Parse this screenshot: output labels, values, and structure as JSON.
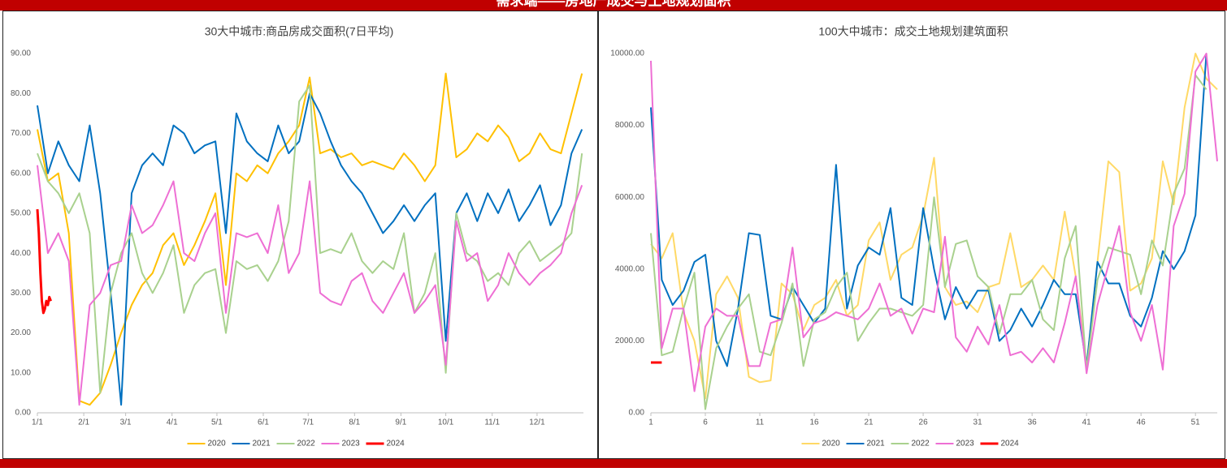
{
  "header": {
    "title": "需求端——房地产成交与土地规划面积"
  },
  "chart_data": [
    {
      "type": "line",
      "title": "30大中城市:商品房成交面积(7日平均)",
      "x": [
        0,
        7,
        14,
        21,
        28,
        35,
        42,
        49,
        56,
        63,
        70,
        77,
        84,
        91,
        98,
        105,
        112,
        119,
        126,
        133,
        140,
        147,
        154,
        161,
        168,
        175,
        182,
        189,
        196,
        203,
        210,
        217,
        224,
        231,
        238,
        245,
        252,
        259,
        266,
        273,
        280,
        287,
        294,
        301,
        308,
        315,
        322,
        329,
        336,
        343,
        350,
        357,
        364
      ],
      "xlim": [
        0,
        365
      ],
      "xticks": [
        {
          "value": 0,
          "label": "1/1"
        },
        {
          "value": 31,
          "label": "2/1"
        },
        {
          "value": 59,
          "label": "3/1"
        },
        {
          "value": 90,
          "label": "4/1"
        },
        {
          "value": 120,
          "label": "5/1"
        },
        {
          "value": 151,
          "label": "6/1"
        },
        {
          "value": 181,
          "label": "7/1"
        },
        {
          "value": 212,
          "label": "8/1"
        },
        {
          "value": 243,
          "label": "9/1"
        },
        {
          "value": 273,
          "label": "10/1"
        },
        {
          "value": 304,
          "label": "11/1"
        },
        {
          "value": 334,
          "label": "12/1"
        }
      ],
      "ylim": [
        0,
        90
      ],
      "yticks": [
        {
          "value": 0,
          "label": "0.00"
        },
        {
          "value": 10,
          "label": "10.00"
        },
        {
          "value": 20,
          "label": "20.00"
        },
        {
          "value": 30,
          "label": "30.00"
        },
        {
          "value": 40,
          "label": "40.00"
        },
        {
          "value": 50,
          "label": "50.00"
        },
        {
          "value": 60,
          "label": "60.00"
        },
        {
          "value": 70,
          "label": "70.00"
        },
        {
          "value": 80,
          "label": "80.00"
        },
        {
          "value": 90,
          "label": "90.00"
        }
      ],
      "grid": false,
      "series": [
        {
          "name": "2020",
          "color": "#FFC000",
          "values": [
            71,
            58,
            60,
            45,
            3,
            2,
            5,
            12,
            20,
            27,
            32,
            35,
            42,
            45,
            37,
            42,
            48,
            55,
            32,
            60,
            58,
            62,
            60,
            65,
            68,
            72,
            84,
            65,
            66,
            64,
            65,
            62,
            63,
            62,
            61,
            65,
            62,
            58,
            62,
            85,
            64,
            66,
            70,
            68,
            72,
            69,
            63,
            65,
            70,
            66,
            65,
            75,
            85
          ]
        },
        {
          "name": "2021",
          "color": "#0070C0",
          "values": [
            77,
            60,
            68,
            62,
            58,
            72,
            55,
            30,
            2,
            55,
            62,
            65,
            62,
            72,
            70,
            65,
            67,
            68,
            45,
            75,
            68,
            65,
            63,
            72,
            65,
            68,
            80,
            75,
            68,
            62,
            58,
            55,
            50,
            45,
            48,
            52,
            48,
            52,
            55,
            18,
            50,
            55,
            48,
            55,
            50,
            56,
            48,
            52,
            57,
            47,
            52,
            65,
            71
          ]
        },
        {
          "name": "2022",
          "color": "#A9D18E",
          "values": [
            65,
            58,
            55,
            50,
            55,
            45,
            5,
            30,
            40,
            45,
            35,
            30,
            35,
            42,
            25,
            32,
            35,
            36,
            20,
            38,
            36,
            37,
            33,
            38,
            48,
            78,
            82,
            40,
            41,
            40,
            45,
            38,
            35,
            38,
            36,
            45,
            25,
            30,
            40,
            10,
            50,
            40,
            38,
            33,
            35,
            32,
            40,
            43,
            38,
            40,
            42,
            45,
            65
          ]
        },
        {
          "name": "2023",
          "color": "#EE6FD4",
          "values": [
            62,
            40,
            45,
            38,
            2,
            27,
            30,
            37,
            38,
            52,
            45,
            47,
            52,
            58,
            40,
            38,
            45,
            50,
            25,
            45,
            44,
            45,
            40,
            52,
            35,
            40,
            58,
            30,
            28,
            27,
            33,
            35,
            28,
            25,
            30,
            35,
            25,
            28,
            32,
            12,
            48,
            38,
            40,
            28,
            32,
            40,
            35,
            32,
            35,
            37,
            40,
            50,
            57
          ]
        },
        {
          "name": "2024",
          "color": "#FF0000",
          "x": [
            0,
            1,
            2,
            3,
            4,
            5,
            6,
            7,
            8,
            9
          ],
          "values": [
            51,
            45,
            35,
            28,
            25,
            26,
            28,
            27,
            29,
            28
          ]
        }
      ]
    },
    {
      "type": "line",
      "title": "100大中城市：成交土地规划建筑面积",
      "x": [
        1,
        2,
        3,
        4,
        5,
        6,
        7,
        8,
        9,
        10,
        11,
        12,
        13,
        14,
        15,
        16,
        17,
        18,
        19,
        20,
        21,
        22,
        23,
        24,
        25,
        26,
        27,
        28,
        29,
        30,
        31,
        32,
        33,
        34,
        35,
        36,
        37,
        38,
        39,
        40,
        41,
        42,
        43,
        44,
        45,
        46,
        47,
        48,
        49,
        50,
        51,
        52,
        53
      ],
      "xlim": [
        1,
        53
      ],
      "xticks": [
        1,
        6,
        11,
        16,
        21,
        26,
        31,
        36,
        41,
        46,
        51
      ],
      "ylim": [
        0,
        10000
      ],
      "yticks": [
        {
          "value": 0,
          "label": "0.00"
        },
        {
          "value": 2000,
          "label": "2000.00"
        },
        {
          "value": 4000,
          "label": "4000.00"
        },
        {
          "value": 6000,
          "label": "6000.00"
        },
        {
          "value": 8000,
          "label": "8000.00"
        },
        {
          "value": 10000,
          "label": "10000.00"
        }
      ],
      "grid": false,
      "series": [
        {
          "name": "2020",
          "color": "#FFD966",
          "values": [
            4700,
            4300,
            5000,
            2800,
            2000,
            400,
            3300,
            3800,
            3200,
            1000,
            850,
            900,
            3600,
            3300,
            2300,
            3000,
            3200,
            3700,
            2700,
            3000,
            4800,
            5300,
            3700,
            4400,
            4600,
            5500,
            7100,
            3500,
            3000,
            3100,
            2800,
            3500,
            3600,
            5000,
            3500,
            3700,
            4100,
            3700,
            5600,
            3800,
            1300,
            4200,
            7000,
            6700,
            3400,
            3600,
            4300,
            7000,
            5800,
            8500,
            10000,
            9300,
            9000
          ]
        },
        {
          "name": "2021",
          "color": "#0070C0",
          "values": [
            8500,
            3700,
            3000,
            3400,
            4200,
            4400,
            2000,
            1300,
            2900,
            5000,
            4950,
            2700,
            2600,
            3500,
            3000,
            2500,
            2900,
            6900,
            2900,
            4100,
            4600,
            4400,
            5700,
            3200,
            3000,
            5700,
            4000,
            2600,
            3500,
            2900,
            3400,
            3400,
            2000,
            2300,
            2900,
            2400,
            3000,
            3700,
            3300,
            3300,
            1300,
            4200,
            3600,
            3600,
            2700,
            2400,
            3200,
            4500,
            4000,
            4500,
            5500,
            10000,
            null
          ]
        },
        {
          "name": "2022",
          "color": "#A9D18E",
          "values": [
            5000,
            1600,
            1700,
            2900,
            3900,
            100,
            1800,
            2400,
            2900,
            3300,
            1700,
            1600,
            2500,
            3600,
            1300,
            2600,
            2800,
            3500,
            3900,
            2000,
            2500,
            2900,
            2900,
            2800,
            2700,
            3000,
            6000,
            3500,
            4700,
            4800,
            3800,
            3500,
            2200,
            3300,
            3300,
            3700,
            2600,
            2300,
            4300,
            5200,
            1200,
            3700,
            4600,
            4500,
            4400,
            3300,
            4800,
            4100,
            6100,
            6800,
            9400,
            9000,
            null
          ]
        },
        {
          "name": "2023",
          "color": "#EE6FD4",
          "values": [
            9800,
            1800,
            2900,
            2900,
            600,
            2400,
            2900,
            2700,
            2700,
            1300,
            1300,
            2500,
            2600,
            4600,
            2100,
            2500,
            2600,
            2800,
            2700,
            2600,
            2900,
            3600,
            2700,
            2900,
            2200,
            2900,
            2800,
            4900,
            2100,
            1700,
            2400,
            1900,
            3000,
            1600,
            1700,
            1400,
            1800,
            1400,
            2500,
            3800,
            1100,
            3000,
            4100,
            5200,
            2800,
            2000,
            3000,
            1200,
            5200,
            6100,
            9500,
            10000,
            7000
          ]
        },
        {
          "name": "2024",
          "color": "#FF0000",
          "x": [
            1,
            2
          ],
          "values": [
            1400,
            1400
          ]
        }
      ]
    }
  ]
}
